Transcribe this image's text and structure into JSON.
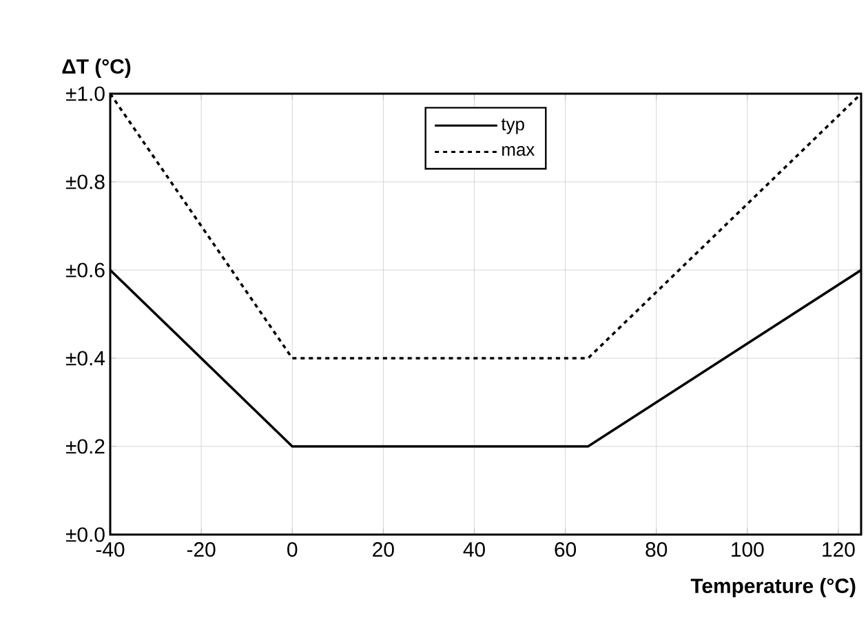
{
  "chart_data": {
    "type": "line",
    "xlabel": "Temperature (°C)",
    "ylabel": "ΔT (°C)",
    "x": [
      -40,
      0,
      65,
      125
    ],
    "series": [
      {
        "name": "typ",
        "color": "#000000",
        "line_style": "solid",
        "values": [
          0.6,
          0.2,
          0.2,
          0.6
        ]
      },
      {
        "name": "max",
        "color": "#000000",
        "line_style": "dashed",
        "values": [
          1.0,
          0.4,
          0.4,
          1.0
        ]
      }
    ],
    "xlim": [
      -40,
      125
    ],
    "ylim": [
      0,
      1.0
    ],
    "xticks": [
      -40,
      -20,
      0,
      20,
      40,
      60,
      80,
      100,
      120
    ],
    "yticks": [
      {
        "value": 0,
        "label": "±0.0"
      },
      {
        "value": 0.2,
        "label": "±0.2"
      },
      {
        "value": 0.4,
        "label": "±0.4"
      },
      {
        "value": 0.6,
        "label": "±0.6"
      },
      {
        "value": 0.8,
        "label": "±0.8"
      },
      {
        "value": 1.0,
        "label": "±1.0"
      }
    ],
    "grid": true,
    "legend": "top",
    "marker": "none"
  }
}
